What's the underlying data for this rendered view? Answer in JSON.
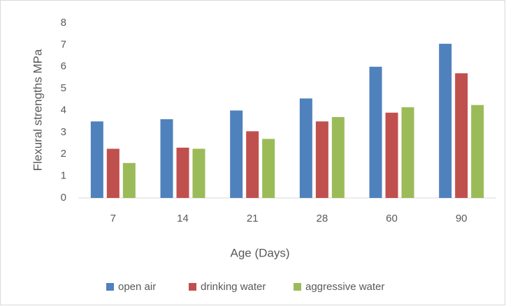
{
  "chart_data": {
    "type": "bar",
    "x_label": "Age (Days)",
    "y_label": "Flexural strengths MPa",
    "categories": [
      "7",
      "14",
      "21",
      "28",
      "60",
      "90"
    ],
    "series": [
      {
        "name": "open air",
        "color": "#4f81bd",
        "values": [
          3.5,
          3.6,
          4.0,
          4.55,
          6.0,
          7.05
        ]
      },
      {
        "name": "drinking water",
        "color": "#c0504d",
        "values": [
          2.25,
          2.3,
          3.05,
          3.5,
          3.9,
          5.7
        ]
      },
      {
        "name": "aggressive water",
        "color": "#9bbb59",
        "values": [
          1.6,
          2.25,
          2.7,
          3.7,
          4.15,
          4.25
        ]
      }
    ],
    "ylim": [
      0,
      8
    ],
    "yticks": [
      0,
      1,
      2,
      3,
      4,
      5,
      6,
      7,
      8
    ],
    "grid": false,
    "legend": "bottom"
  }
}
